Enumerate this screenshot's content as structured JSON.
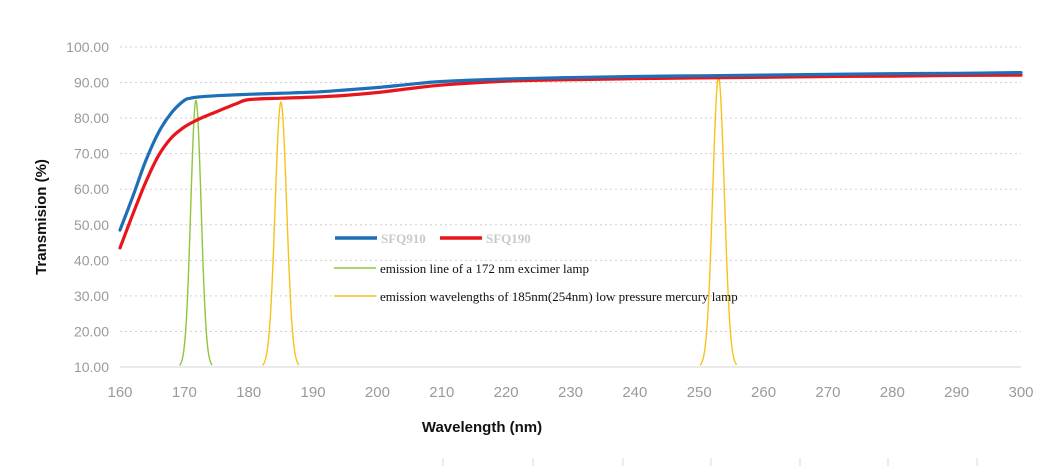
{
  "chart_data": {
    "type": "line",
    "title": "",
    "xlabel": "Wavelength  (nm)",
    "ylabel": "Transmision  (%)",
    "xlim": [
      160,
      300
    ],
    "ylim": [
      10,
      100
    ],
    "x_ticks": [
      "160",
      "170",
      "180",
      "190",
      "200",
      "210",
      "220",
      "230",
      "240",
      "250",
      "260",
      "270",
      "280",
      "290",
      "300"
    ],
    "y_ticks": [
      "10.00",
      "20.00",
      "30.00",
      "40.00",
      "50.00",
      "60.00",
      "70.00",
      "80.00",
      "90.00",
      "100.00"
    ],
    "grid": "horizontal-dotted",
    "legend_position": "center",
    "series": [
      {
        "name": "SFQ910",
        "color": "#1f6fb8",
        "x": [
          160,
          162,
          164,
          166,
          168,
          170,
          171,
          172,
          175,
          180,
          185,
          190,
          195,
          200,
          205,
          210,
          220,
          230,
          240,
          250,
          260,
          270,
          280,
          290,
          300
        ],
        "y": [
          48.5,
          58,
          68,
          76,
          81.5,
          85,
          85.6,
          85.9,
          86.3,
          86.7,
          87,
          87.3,
          87.9,
          88.6,
          89.5,
          90.3,
          91,
          91.4,
          91.7,
          91.9,
          92.1,
          92.3,
          92.5,
          92.6,
          92.8
        ]
      },
      {
        "name": "SFQ190",
        "color": "#e8151b",
        "x": [
          160,
          162,
          164,
          166,
          168,
          170,
          172,
          175,
          178,
          180,
          185,
          190,
          195,
          200,
          205,
          210,
          220,
          230,
          240,
          250,
          260,
          270,
          280,
          290,
          300
        ],
        "y": [
          43.5,
          53,
          62,
          69.5,
          74.5,
          77.5,
          79.5,
          81.8,
          84,
          85.2,
          85.6,
          85.9,
          86.4,
          87.2,
          88.3,
          89.3,
          90.4,
          90.8,
          91.1,
          91.3,
          91.5,
          91.7,
          91.8,
          92,
          92.1
        ]
      }
    ],
    "peaks": [
      {
        "name": "emission line of a 172 nm excimer lamp",
        "color": "#8dc63f",
        "center": 171.8,
        "width": 0.8,
        "peak": 85,
        "base": 10
      },
      {
        "name": "emission wavelengths of 185nm(254nm) low pressure mercury lamp",
        "color": "#f6c21a",
        "center": 185,
        "width": 0.9,
        "peak": 84.5,
        "base": 10
      },
      {
        "name": "emission wavelengths of 185nm(254nm) low pressure mercury lamp",
        "color": "#f6c21a",
        "center": 253,
        "width": 0.9,
        "peak": 91.5,
        "base": 10
      }
    ],
    "legend": {
      "series_labels": [
        "SFQ910",
        "SFQ190"
      ],
      "notes": [
        {
          "text": "emission line of a 172 nm excimer lamp",
          "color": "#8dc63f"
        },
        {
          "text": "emission wavelengths of 185nm(254nm) low pressure mercury lamp",
          "color": "#f6c21a"
        }
      ]
    }
  }
}
